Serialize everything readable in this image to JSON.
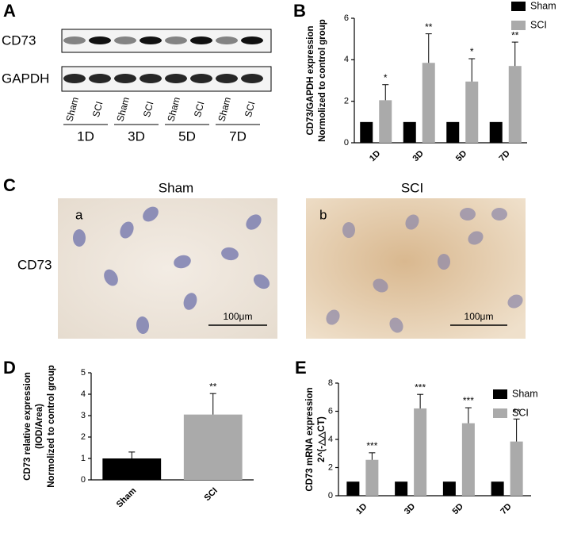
{
  "panel_labels": [
    "A",
    "B",
    "C",
    "D",
    "E"
  ],
  "panel_a": {
    "rows": [
      "CD73",
      "GAPDH"
    ],
    "lanes": [
      "Sham",
      "SCI",
      "Sham",
      "SCI",
      "Sham",
      "SCI",
      "Sham",
      "SCI"
    ],
    "days": [
      "1D",
      "3D",
      "5D",
      "7D"
    ]
  },
  "panel_c": {
    "columns": [
      "Sham",
      "SCI"
    ],
    "row_label": "CD73",
    "image_labels": [
      "a",
      "b"
    ],
    "scale_bars": [
      "100μm",
      "100μm"
    ]
  },
  "chart_data": [
    {
      "type": "bar",
      "y_label": [
        "CD73/GAPDH expression",
        "Normolized to control group"
      ],
      "categories": [
        "1D",
        "3D",
        "5D",
        "7D"
      ],
      "series": [
        {
          "name": "Sham",
          "color": "#000000",
          "values": [
            1,
            1,
            1,
            1
          ]
        },
        {
          "name": "SCI",
          "color": "#aaaaaa",
          "values": [
            2.05,
            3.85,
            2.95,
            3.7
          ],
          "errors": [
            0.75,
            1.4,
            1.1,
            1.15
          ]
        }
      ],
      "annotations": [
        "*",
        "**",
        "*",
        "**"
      ],
      "ylim": [
        0,
        6
      ],
      "yticks": [
        0,
        2,
        4,
        6
      ]
    },
    {
      "type": "bar",
      "y_label": [
        "CD73 relative expression",
        "(IOD/Area)",
        "Normolized to control group"
      ],
      "categories": [
        "Sham",
        "SCI"
      ],
      "values": [
        1,
        3.05
      ],
      "errors": [
        0.3,
        0.98
      ],
      "colors": [
        "#000000",
        "#aaaaaa"
      ],
      "annotations": [
        null,
        "**"
      ],
      "ylim": [
        0,
        5
      ],
      "yticks": [
        0,
        1,
        2,
        3,
        4,
        5
      ]
    },
    {
      "type": "bar",
      "y_label": [
        "CD73 mRNA expression",
        "2^(-△△CT)"
      ],
      "categories": [
        "1D",
        "3D",
        "5D",
        "7D"
      ],
      "series": [
        {
          "name": "Sham",
          "color": "#000000",
          "values": [
            1,
            1,
            1,
            1
          ]
        },
        {
          "name": "SCI",
          "color": "#aaaaaa",
          "values": [
            2.55,
            6.2,
            5.15,
            3.85
          ],
          "errors": [
            0.5,
            1.0,
            1.1,
            1.6
          ]
        }
      ],
      "annotations": [
        "***",
        "***",
        "***",
        "**"
      ],
      "ylim": [
        0,
        8
      ],
      "yticks": [
        0,
        2,
        4,
        6,
        8
      ]
    }
  ]
}
